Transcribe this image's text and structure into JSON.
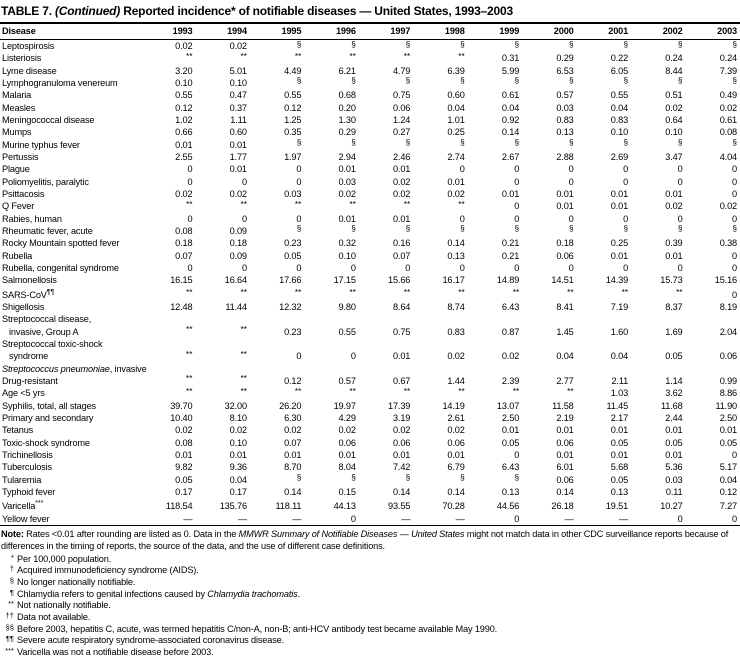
{
  "title": {
    "part1": "TABLE 7. ",
    "part2": "(Continued)",
    "part3": " Reported incidence* of notifiable diseases — United States, 1993–2003"
  },
  "table": {
    "disease_header": "Disease",
    "years": [
      "1993",
      "1994",
      "1995",
      "1996",
      "1997",
      "1998",
      "1999",
      "2000",
      "2001",
      "2002",
      "2003"
    ],
    "rows": [
      {
        "label": [
          [
            {
              "t": "Leptospirosis"
            }
          ]
        ],
        "values": [
          "0.02",
          "0.02",
          "§",
          "§",
          "§",
          "§",
          "§",
          "§",
          "§",
          "§",
          "§"
        ]
      },
      {
        "label": [
          [
            {
              "t": "Listeriosis"
            }
          ]
        ],
        "values": [
          "**",
          "**",
          "**",
          "**",
          "**",
          "**",
          "0.31",
          "0.29",
          "0.22",
          "0.24",
          "0.24"
        ]
      },
      {
        "label": [
          [
            {
              "t": "Lyme disease"
            }
          ]
        ],
        "values": [
          "3.20",
          "5.01",
          "4.49",
          "6.21",
          "4.79",
          "6.39",
          "5.99",
          "6.53",
          "6.05",
          "8.44",
          "7.39"
        ]
      },
      {
        "label": [
          [
            {
              "t": "Lymphogranuloma venereum"
            }
          ]
        ],
        "values": [
          "0.10",
          "0.10",
          "§",
          "§",
          "§",
          "§",
          "§",
          "§",
          "§",
          "§",
          "§"
        ]
      },
      {
        "label": [
          [
            {
              "t": "Malaria"
            }
          ]
        ],
        "values": [
          "0.55",
          "0.47",
          "0.55",
          "0.68",
          "0.75",
          "0.60",
          "0.61",
          "0.57",
          "0.55",
          "0.51",
          "0.49"
        ]
      },
      {
        "label": [
          [
            {
              "t": "Measles"
            }
          ]
        ],
        "values": [
          "0.12",
          "0.37",
          "0.12",
          "0.20",
          "0.06",
          "0.04",
          "0.04",
          "0.03",
          "0.04",
          "0.02",
          "0.02"
        ]
      },
      {
        "label": [
          [
            {
              "t": "Meningococcal disease"
            }
          ]
        ],
        "values": [
          "1.02",
          "1.11",
          "1.25",
          "1.30",
          "1.24",
          "1.01",
          "0.92",
          "0.83",
          "0.83",
          "0.64",
          "0.61"
        ]
      },
      {
        "label": [
          [
            {
              "t": "Mumps"
            }
          ]
        ],
        "values": [
          "0.66",
          "0.60",
          "0.35",
          "0.29",
          "0.27",
          "0.25",
          "0.14",
          "0.13",
          "0.10",
          "0.10",
          "0.08"
        ]
      },
      {
        "label": [
          [
            {
              "t": "Murine typhus fever"
            }
          ]
        ],
        "values": [
          "0.01",
          "0.01",
          "§",
          "§",
          "§",
          "§",
          "§",
          "§",
          "§",
          "§",
          "§"
        ]
      },
      {
        "label": [
          [
            {
              "t": "Pertussis"
            }
          ]
        ],
        "values": [
          "2.55",
          "1.77",
          "1.97",
          "2.94",
          "2.46",
          "2.74",
          "2.67",
          "2.88",
          "2.69",
          "3.47",
          "4.04"
        ]
      },
      {
        "label": [
          [
            {
              "t": "Plague"
            }
          ]
        ],
        "values": [
          "0",
          "0.01",
          "0",
          "0.01",
          "0.01",
          "0",
          "0",
          "0",
          "0",
          "0",
          "0"
        ]
      },
      {
        "label": [
          [
            {
              "t": "Poliomyelitis, paralytic"
            }
          ]
        ],
        "values": [
          "0",
          "0",
          "0",
          "0.03",
          "0.02",
          "0.01",
          "0",
          "0",
          "0",
          "0",
          "0"
        ]
      },
      {
        "label": [
          [
            {
              "t": "Psittacosis"
            }
          ]
        ],
        "values": [
          "0.02",
          "0.02",
          "0.03",
          "0.02",
          "0.02",
          "0.02",
          "0.01",
          "0.01",
          "0.01",
          "0.01",
          "0"
        ]
      },
      {
        "label": [
          [
            {
              "t": "Q Fever"
            }
          ]
        ],
        "values": [
          "**",
          "**",
          "**",
          "**",
          "**",
          "**",
          "0",
          "0.01",
          "0.01",
          "0.02",
          "0.02"
        ]
      },
      {
        "label": [
          [
            {
              "t": "Rabies, human"
            }
          ]
        ],
        "values": [
          "0",
          "0",
          "0",
          "0.01",
          "0.01",
          "0",
          "0",
          "0",
          "0",
          "0",
          "0"
        ]
      },
      {
        "label": [
          [
            {
              "t": "Rheumatic fever, acute"
            }
          ]
        ],
        "values": [
          "0.08",
          "0.09",
          "§",
          "§",
          "§",
          "§",
          "§",
          "§",
          "§",
          "§",
          "§"
        ]
      },
      {
        "label": [
          [
            {
              "t": "Rocky Mountain spotted fever"
            }
          ]
        ],
        "values": [
          "0.18",
          "0.18",
          "0.23",
          "0.32",
          "0.16",
          "0.14",
          "0.21",
          "0.18",
          "0.25",
          "0.39",
          "0.38"
        ]
      },
      {
        "label": [
          [
            {
              "t": "Rubella"
            }
          ]
        ],
        "values": [
          "0.07",
          "0.09",
          "0.05",
          "0.10",
          "0.07",
          "0.13",
          "0.21",
          "0.06",
          "0.01",
          "0.01",
          "0"
        ]
      },
      {
        "label": [
          [
            {
              "t": "Rubella, congenital syndrome"
            }
          ]
        ],
        "values": [
          "0",
          "0",
          "0",
          "0",
          "0",
          "0",
          "0",
          "0",
          "0",
          "0",
          "0"
        ]
      },
      {
        "label": [
          [
            {
              "t": "Salmonellosis"
            }
          ]
        ],
        "values": [
          "16.15",
          "16.64",
          "17.66",
          "17.15",
          "15.66",
          "16.17",
          "14.89",
          "14.51",
          "14.39",
          "15.73",
          "15.16"
        ]
      },
      {
        "label": [
          [
            {
              "t": "SARS-CoV"
            },
            {
              "t": "¶¶",
              "sup": true
            }
          ]
        ],
        "values": [
          "**",
          "**",
          "**",
          "**",
          "**",
          "**",
          "**",
          "**",
          "**",
          "**",
          "0"
        ]
      },
      {
        "label": [
          [
            {
              "t": "Shigellosis"
            }
          ]
        ],
        "values": [
          "12.48",
          "11.44",
          "12.32",
          "9.80",
          "8.64",
          "8.74",
          "6.43",
          "8.41",
          "7.19",
          "8.37",
          "8.19"
        ]
      },
      {
        "label": [
          [
            {
              "t": "Streptococcal disease,"
            }
          ],
          [
            {
              "t": "invasive, Group A"
            }
          ]
        ],
        "values": [
          "**",
          "**",
          "0.23",
          "0.55",
          "0.75",
          "0.83",
          "0.87",
          "1.45",
          "1.60",
          "1.69",
          "2.04"
        ]
      },
      {
        "label": [
          [
            {
              "t": "Streptococcal toxic-shock"
            }
          ],
          [
            {
              "t": "syndrome"
            }
          ]
        ],
        "values": [
          "**",
          "**",
          "0",
          "0",
          "0.01",
          "0.02",
          "0.02",
          "0.04",
          "0.04",
          "0.05",
          "0.06"
        ]
      },
      {
        "label": [
          [
            {
              "t": "Streptococcus pneumoniae",
              "i": true
            },
            {
              "t": ", invasive"
            }
          ]
        ],
        "values": null
      },
      {
        "label": [
          [
            {
              "t": "Drug-resistant"
            }
          ]
        ],
        "indent": 1,
        "values": [
          "**",
          "**",
          "0.12",
          "0.57",
          "0.67",
          "1.44",
          "2.39",
          "2.77",
          "2.11",
          "1.14",
          "0.99"
        ]
      },
      {
        "label": [
          [
            {
              "t": "Age <5 yrs"
            }
          ]
        ],
        "indent": 1,
        "values": [
          "**",
          "**",
          "**",
          "**",
          "**",
          "**",
          "**",
          "**",
          "1.03",
          "3.62",
          "8.86"
        ]
      },
      {
        "label": [
          [
            {
              "t": "Syphilis, total, all stages"
            }
          ]
        ],
        "values": [
          "39.70",
          "32.00",
          "26.20",
          "19.97",
          "17.39",
          "14.19",
          "13.07",
          "11.58",
          "11.45",
          "11.68",
          "11.90"
        ]
      },
      {
        "label": [
          [
            {
              "t": "Primary and secondary"
            }
          ]
        ],
        "indent": 1,
        "values": [
          "10.40",
          "8.10",
          "6.30",
          "4.29",
          "3.19",
          "2.61",
          "2.50",
          "2.19",
          "2.17",
          "2.44",
          "2.50"
        ]
      },
      {
        "label": [
          [
            {
              "t": "Tetanus"
            }
          ]
        ],
        "values": [
          "0.02",
          "0.02",
          "0.02",
          "0.02",
          "0.02",
          "0.02",
          "0.01",
          "0.01",
          "0.01",
          "0.01",
          "0.01"
        ]
      },
      {
        "label": [
          [
            {
              "t": "Toxic-shock syndrome"
            }
          ]
        ],
        "values": [
          "0.08",
          "0.10",
          "0.07",
          "0.06",
          "0.06",
          "0.06",
          "0.05",
          "0.06",
          "0.05",
          "0.05",
          "0.05"
        ]
      },
      {
        "label": [
          [
            {
              "t": "Trichinellosis"
            }
          ]
        ],
        "values": [
          "0.01",
          "0.01",
          "0.01",
          "0.01",
          "0.01",
          "0.01",
          "0",
          "0.01",
          "0.01",
          "0.01",
          "0"
        ]
      },
      {
        "label": [
          [
            {
              "t": "Tuberculosis"
            }
          ]
        ],
        "values": [
          "9.82",
          "9.36",
          "8.70",
          "8.04",
          "7.42",
          "6.79",
          "6.43",
          "6.01",
          "5.68",
          "5.36",
          "5.17"
        ]
      },
      {
        "label": [
          [
            {
              "t": "Tularemia"
            }
          ]
        ],
        "values": [
          "0.05",
          "0.04",
          "§",
          "§",
          "§",
          "§",
          "§",
          "0.06",
          "0.05",
          "0.03",
          "0.04"
        ]
      },
      {
        "label": [
          [
            {
              "t": "Typhoid fever"
            }
          ]
        ],
        "values": [
          "0.17",
          "0.17",
          "0.14",
          "0.15",
          "0.14",
          "0.14",
          "0.13",
          "0.14",
          "0.13",
          "0.11",
          "0.12"
        ]
      },
      {
        "label": [
          [
            {
              "t": "Varicella"
            },
            {
              "t": "***",
              "sup": true
            }
          ]
        ],
        "values": [
          "118.54",
          "135.76",
          "118.11",
          "44.13",
          "93.55",
          "70.28",
          "44.56",
          "26.18",
          "19.51",
          "10.27",
          "7.27"
        ]
      },
      {
        "label": [
          [
            {
              "t": "Yellow fever"
            }
          ]
        ],
        "values": [
          "—",
          "—",
          "—",
          "0",
          "—",
          "—",
          "0",
          "—",
          "—",
          "0",
          "0"
        ]
      }
    ]
  },
  "note": {
    "label": "Note:",
    "part1": " Rates <0.01 after rounding are listed as 0. Data in the ",
    "italic": "MMWR Summary of Notifiable Diseases — United States",
    "part2": " might not match data in other CDC surveillance reports because of differences in the timing of reports, the source of the data, and the use of different case definitions."
  },
  "footnotes": [
    {
      "marker": "*",
      "segs": [
        {
          "t": "Per 100,000 population."
        }
      ]
    },
    {
      "marker": "†",
      "segs": [
        {
          "t": "Acquired immunodeficiency syndrome (AIDS)."
        }
      ]
    },
    {
      "marker": "§",
      "segs": [
        {
          "t": "No longer nationally notifiable."
        }
      ]
    },
    {
      "marker": "¶",
      "segs": [
        {
          "t": "Chlamydia refers to genital infections caused by "
        },
        {
          "t": "Chlamydia trachomatis",
          "i": true
        },
        {
          "t": "."
        }
      ]
    },
    {
      "marker": "**",
      "segs": [
        {
          "t": "Not nationally notifiable."
        }
      ]
    },
    {
      "marker": "††",
      "segs": [
        {
          "t": "Data not available."
        }
      ]
    },
    {
      "marker": "§§",
      "segs": [
        {
          "t": "Before 2003, hepatitis C, acute, was termed hepatitis C/non-A, non-B; anti-HCV antibody test became available May 1990."
        }
      ]
    },
    {
      "marker": "¶¶",
      "segs": [
        {
          "t": "Severe acute respiratory syndrome-associated coronavirus disease."
        }
      ]
    },
    {
      "marker": "***",
      "segs": [
        {
          "t": "Varicella was not a notifiable disease before 2003."
        }
      ]
    }
  ]
}
